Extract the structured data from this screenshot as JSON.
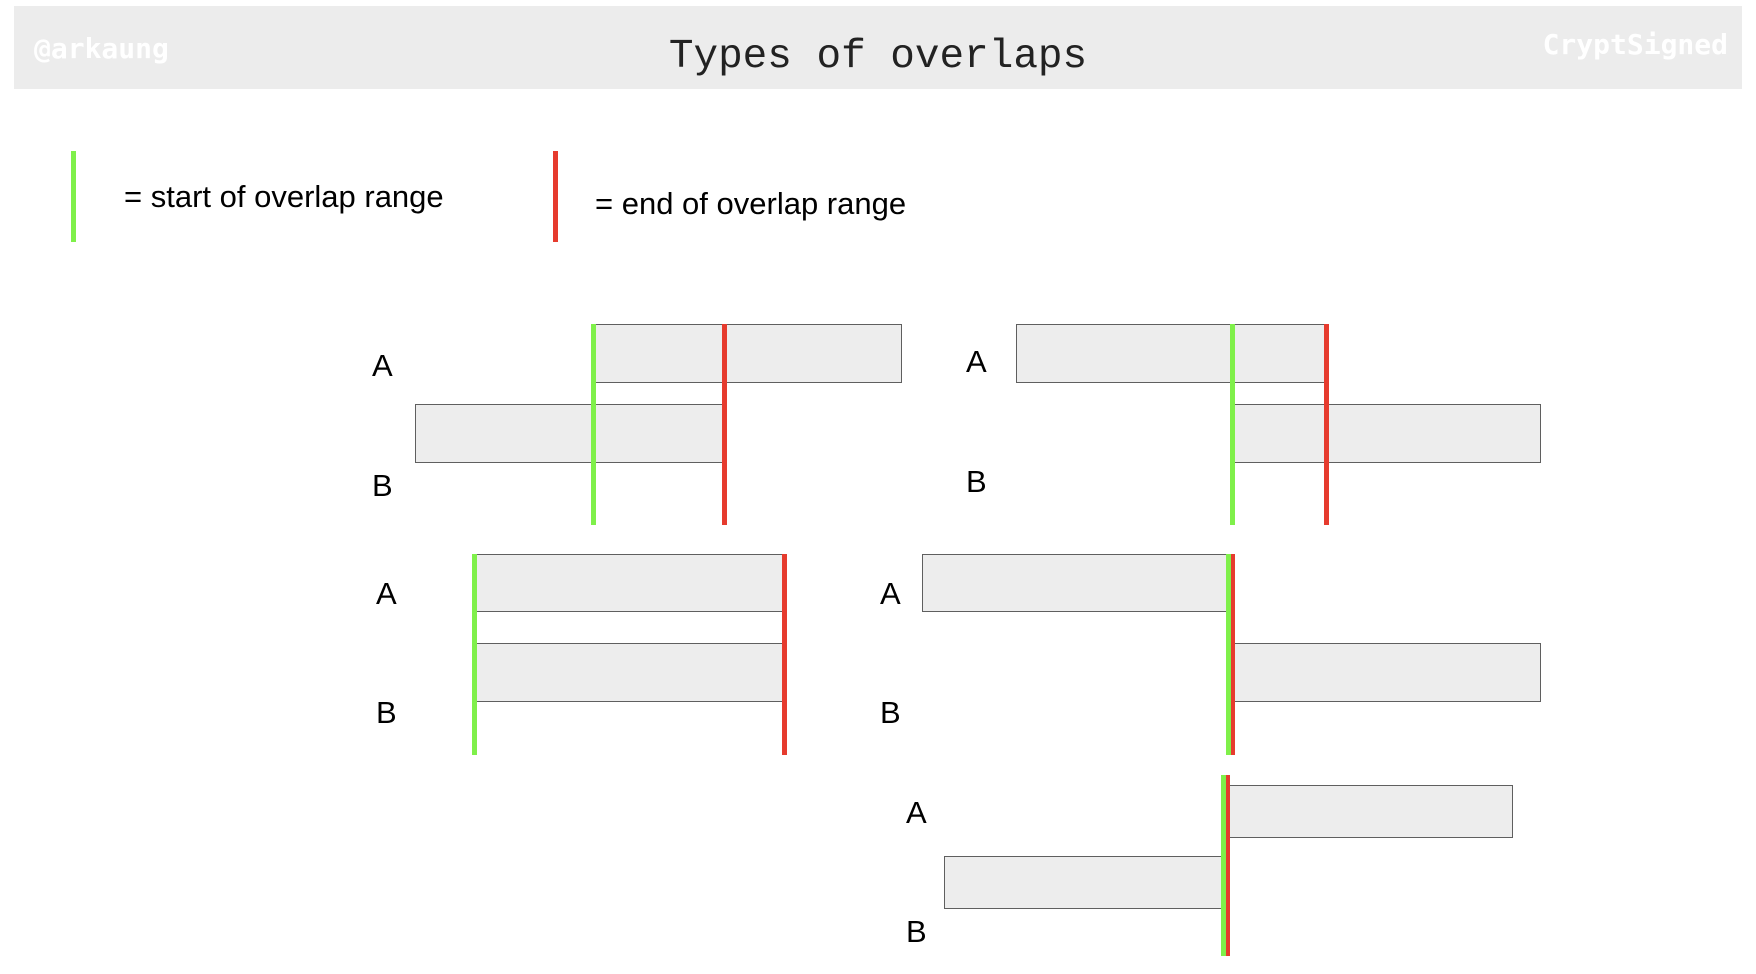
{
  "header": {
    "title": "Types of overlaps",
    "handle": "@arkaung",
    "signature": "CryptSigned"
  },
  "legend": {
    "start": {
      "text": "= start of overlap range",
      "color": "#7ff04a"
    },
    "end": {
      "text": "= end of overlap range",
      "color": "#e63b2e"
    }
  },
  "labels": {
    "a": "A",
    "b": "B"
  },
  "colors": {
    "bar_fill": "#ededed",
    "bar_border": "#5f5f5f",
    "header_bg": "#ececec"
  }
}
